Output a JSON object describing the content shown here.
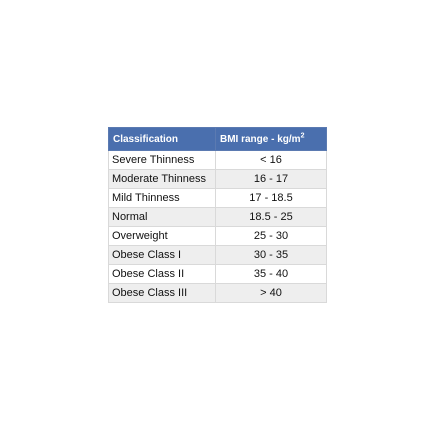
{
  "table": {
    "header": {
      "classification": "Classification",
      "range": "BMI range - kg/m",
      "range_exponent": "2"
    },
    "rows": [
      {
        "classification": "Severe Thinness",
        "range": "< 16"
      },
      {
        "classification": "Moderate Thinness",
        "range": "16 - 17"
      },
      {
        "classification": "Mild Thinness",
        "range": "17 - 18.5"
      },
      {
        "classification": "Normal",
        "range": "18.5 - 25"
      },
      {
        "classification": "Overweight",
        "range": "25 - 30"
      },
      {
        "classification": "Obese Class I",
        "range": "30 - 35"
      },
      {
        "classification": "Obese Class II",
        "range": "35 - 40"
      },
      {
        "classification": "Obese Class III",
        "range": "> 40"
      }
    ]
  },
  "colors": {
    "header_background": "#4a6fae",
    "row_even": "#ffffff",
    "row_odd": "#eeeeee",
    "border": "#d9d9d9"
  }
}
